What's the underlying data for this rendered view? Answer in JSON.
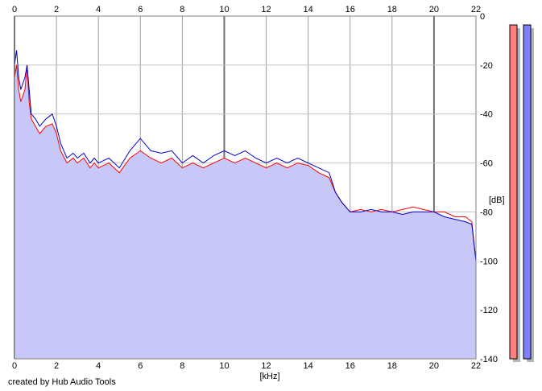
{
  "credit": "created by Hub Audio Tools",
  "chart_data": {
    "type": "line",
    "xlabel": "[kHz]",
    "ylabel": "[dB]",
    "xlim": [
      0,
      22
    ],
    "ylim": [
      -140,
      0
    ],
    "x_ticks": [
      "0",
      "2",
      "4",
      "6",
      "8",
      "10",
      "12",
      "14",
      "16",
      "18",
      "20",
      "22"
    ],
    "y_ticks": [
      "0",
      "-20",
      "-40",
      "-60",
      "-80",
      "-100",
      "-120",
      "-140"
    ],
    "grid": true,
    "colors": {
      "left": "#ff0000",
      "right": "#0000cc",
      "fill": "#c8c8f8",
      "bar_left": "#ff8080",
      "bar_right": "#8080ff"
    },
    "series": [
      {
        "x": [
          0,
          0.1,
          0.2,
          0.3,
          0.5,
          0.6,
          0.7,
          0.8,
          1.0,
          1.2,
          1.5,
          1.8,
          2.0,
          2.2,
          2.5,
          2.8,
          3.0,
          3.3,
          3.6,
          3.8,
          4.0,
          4.5,
          5.0,
          5.5,
          6.0,
          6.5,
          7.0,
          7.5,
          8.0,
          8.5,
          9.0,
          9.5,
          10.0,
          10.5,
          11.0,
          11.5,
          12.0,
          12.5,
          13.0,
          13.5,
          14.0,
          14.5,
          15.0,
          15.3,
          15.6,
          16.0,
          16.5,
          17.0,
          17.5,
          18.0,
          18.5,
          19.0,
          19.5,
          20.0,
          20.5,
          21.0,
          21.5,
          21.8,
          22.0
        ],
        "values": [
          -25,
          -20,
          -30,
          -35,
          -30,
          -20,
          -35,
          -42,
          -45,
          -48,
          -45,
          -44,
          -48,
          -55,
          -60,
          -58,
          -60,
          -58,
          -62,
          -60,
          -62,
          -60,
          -64,
          -58,
          -55,
          -58,
          -60,
          -58,
          -62,
          -60,
          -62,
          -60,
          -58,
          -60,
          -58,
          -60,
          -62,
          -60,
          -62,
          -60,
          -61,
          -64,
          -66,
          -72,
          -76,
          -80,
          -79,
          -80,
          -79,
          -80,
          -79,
          -78,
          -79,
          -80,
          -80,
          -82,
          -82,
          -84,
          -100
        ]
      },
      {
        "x": [
          0,
          0.1,
          0.2,
          0.3,
          0.5,
          0.6,
          0.7,
          0.8,
          1.0,
          1.2,
          1.5,
          1.8,
          2.0,
          2.2,
          2.5,
          2.8,
          3.0,
          3.3,
          3.6,
          3.8,
          4.0,
          4.5,
          5.0,
          5.5,
          6.0,
          6.5,
          7.0,
          7.5,
          8.0,
          8.5,
          9.0,
          9.5,
          10.0,
          10.5,
          11.0,
          11.5,
          12.0,
          12.5,
          13.0,
          13.5,
          14.0,
          14.5,
          15.0,
          15.3,
          15.6,
          16.0,
          16.5,
          17.0,
          17.5,
          18.0,
          18.5,
          19.0,
          19.5,
          20.0,
          20.5,
          21.0,
          21.5,
          21.8,
          22.0
        ],
        "values": [
          -20,
          -14,
          -25,
          -30,
          -25,
          -20,
          -30,
          -40,
          -42,
          -45,
          -42,
          -40,
          -45,
          -52,
          -58,
          -56,
          -58,
          -56,
          -60,
          -58,
          -60,
          -58,
          -62,
          -55,
          -50,
          -55,
          -56,
          -55,
          -60,
          -57,
          -60,
          -57,
          -55,
          -57,
          -55,
          -58,
          -60,
          -58,
          -60,
          -58,
          -60,
          -62,
          -64,
          -72,
          -76,
          -80,
          -80,
          -79,
          -80,
          -80,
          -81,
          -80,
          -80,
          -80,
          -82,
          -83,
          -84,
          -85,
          -100
        ]
      }
    ]
  }
}
